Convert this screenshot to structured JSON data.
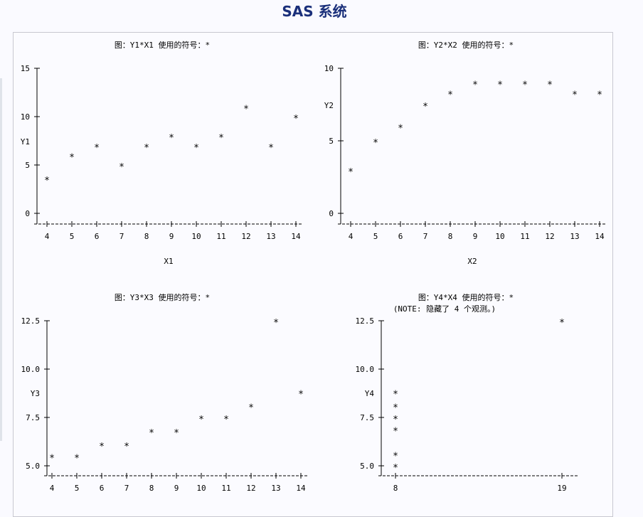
{
  "page_title": "SAS 系统",
  "chart_data": [
    {
      "type": "scatter",
      "title": "图：Y1*X1   使用的符号：*",
      "xlabel": "X1",
      "ylabel": "Y1",
      "xticks": [
        "4",
        "5",
        "6",
        "7",
        "8",
        "9",
        "10",
        "11",
        "12",
        "13",
        "14"
      ],
      "yticks": [
        "0",
        "5",
        "10",
        "15"
      ],
      "xlim": [
        4,
        14
      ],
      "ylim": [
        0,
        15
      ],
      "points": [
        [
          4,
          3.6
        ],
        [
          5,
          6
        ],
        [
          6,
          7
        ],
        [
          7,
          5
        ],
        [
          8,
          7
        ],
        [
          9,
          8
        ],
        [
          10,
          7
        ],
        [
          11,
          8
        ],
        [
          12,
          11
        ],
        [
          13,
          7
        ],
        [
          14,
          10
        ]
      ]
    },
    {
      "type": "scatter",
      "title": "图：Y2*X2   使用的符号：*",
      "xlabel": "X2",
      "ylabel": "Y2",
      "xticks": [
        "4",
        "5",
        "6",
        "7",
        "8",
        "9",
        "10",
        "11",
        "12",
        "13",
        "14"
      ],
      "yticks": [
        "0",
        "5",
        "10"
      ],
      "xlim": [
        4,
        14
      ],
      "ylim": [
        0,
        10
      ],
      "points": [
        [
          4,
          3
        ],
        [
          5,
          5
        ],
        [
          6,
          6
        ],
        [
          7,
          7.5
        ],
        [
          8,
          8.3
        ],
        [
          9,
          9
        ],
        [
          10,
          9
        ],
        [
          11,
          9
        ],
        [
          12,
          9
        ],
        [
          13,
          8.3
        ],
        [
          14,
          8.3
        ]
      ]
    },
    {
      "type": "scatter",
      "title": "图：Y3*X3   使用的符号：*",
      "xlabel": "",
      "ylabel": "Y3",
      "xticks": [
        "4",
        "5",
        "6",
        "7",
        "8",
        "9",
        "10",
        "11",
        "12",
        "13",
        "14"
      ],
      "yticks": [
        "5.0",
        "7.5",
        "10.0",
        "12.5"
      ],
      "xlim": [
        4,
        14
      ],
      "ylim": [
        5,
        12.5
      ],
      "points": [
        [
          4,
          5.5
        ],
        [
          5,
          5.5
        ],
        [
          6,
          6.1
        ],
        [
          7,
          6.1
        ],
        [
          8,
          6.8
        ],
        [
          9,
          6.8
        ],
        [
          10,
          7.5
        ],
        [
          11,
          7.5
        ],
        [
          12,
          8.1
        ],
        [
          13,
          12.5
        ],
        [
          14,
          8.8
        ]
      ]
    },
    {
      "type": "scatter",
      "title": "图：Y4*X4   使用的符号：*",
      "note": "(NOTE: 隐藏了 4 个观测。)",
      "xlabel": "",
      "ylabel": "Y4",
      "xticks": [
        "8",
        "19"
      ],
      "yticks": [
        "5.0",
        "7.5",
        "10.0",
        "12.5"
      ],
      "xlim": [
        8,
        19
      ],
      "ylim": [
        5,
        12.5
      ],
      "points": [
        [
          8,
          5
        ],
        [
          8,
          5.6
        ],
        [
          8,
          6.9
        ],
        [
          8,
          7.5
        ],
        [
          8,
          8.1
        ],
        [
          8,
          8.8
        ],
        [
          19,
          12.5
        ]
      ]
    }
  ]
}
